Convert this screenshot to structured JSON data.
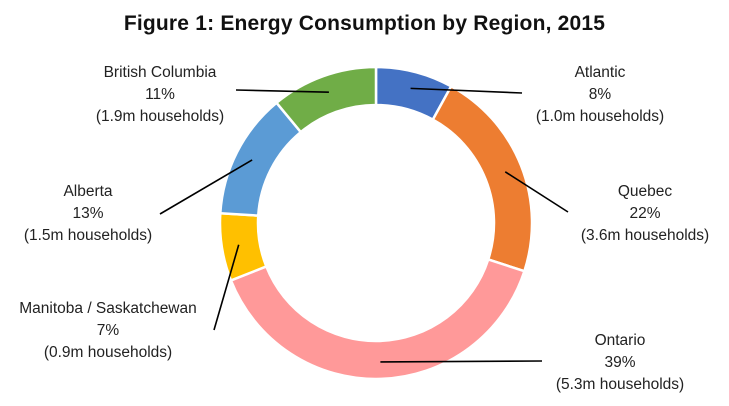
{
  "chart_data": {
    "type": "pie",
    "variant": "donut",
    "title": "Figure 1: Energy Consumption  by Region, 2015",
    "slices": [
      {
        "name": "Atlantic",
        "value": 8,
        "percent_label": "8%",
        "households_label": "(1.0m households)",
        "color": "#4472C4"
      },
      {
        "name": "Quebec",
        "value": 22,
        "percent_label": "22%",
        "households_label": "(3.6m households)",
        "color": "#ED7D31"
      },
      {
        "name": "Ontario",
        "value": 39,
        "percent_label": "39%",
        "households_label": "(5.3m households)",
        "color": "#FF9999"
      },
      {
        "name": "Manitoba / Saskatchewan",
        "value": 7,
        "percent_label": "7%",
        "households_label": "(0.9m households)",
        "color": "#FFC000"
      },
      {
        "name": "Alberta",
        "value": 13,
        "percent_label": "13%",
        "households_label": "(1.5m households)",
        "color": "#5B9BD5"
      },
      {
        "name": "British Columbia",
        "value": 11,
        "percent_label": "11%",
        "households_label": "(1.9m households)",
        "color": "#70AD47"
      }
    ],
    "legend": "none",
    "data_labels": "outside-with-leader-lines"
  }
}
